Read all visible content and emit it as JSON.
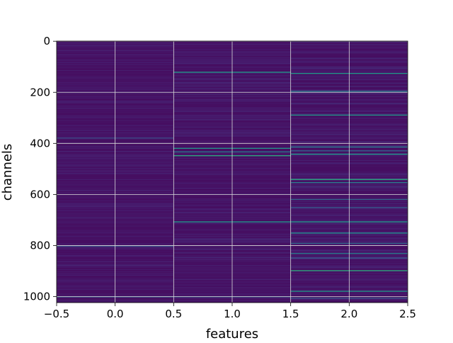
{
  "chart_data": {
    "type": "heatmap",
    "title": "",
    "xlabel": "features",
    "ylabel": "channels",
    "xlim": [
      -0.5,
      2.5
    ],
    "ylim": [
      1023.5,
      -0.5
    ],
    "x_ticks": [
      -0.5,
      0.0,
      0.5,
      1.0,
      1.5,
      2.0,
      2.5
    ],
    "x_tick_labels": [
      "−0.5",
      "0.0",
      "0.5",
      "1.0",
      "1.5",
      "2.0",
      "2.5"
    ],
    "y_ticks": [
      0,
      200,
      400,
      600,
      800,
      1000
    ],
    "y_tick_labels": [
      "0",
      "200",
      "400",
      "600",
      "800",
      "1000"
    ],
    "grid": true,
    "colormap": "viridis",
    "rows": 1024,
    "columns": [
      0,
      1,
      2
    ],
    "background_level": 0.05,
    "highlights": [
      {
        "column": 0,
        "channel": 378,
        "level": 0.3
      },
      {
        "column": 0,
        "channel": 802,
        "level": 0.3
      },
      {
        "column": 0,
        "channel": 1000,
        "level": 0.35
      },
      {
        "column": 1,
        "channel": 120,
        "level": 0.55
      },
      {
        "column": 1,
        "channel": 418,
        "level": 0.55
      },
      {
        "column": 1,
        "channel": 432,
        "level": 0.45
      },
      {
        "column": 1,
        "channel": 447,
        "level": 0.65
      },
      {
        "column": 1,
        "channel": 706,
        "level": 0.55
      },
      {
        "column": 1,
        "channel": 1000,
        "level": 0.35
      },
      {
        "column": 2,
        "channel": 125,
        "level": 0.55
      },
      {
        "column": 2,
        "channel": 195,
        "level": 0.45
      },
      {
        "column": 2,
        "channel": 288,
        "level": 0.55
      },
      {
        "column": 2,
        "channel": 413,
        "level": 0.45
      },
      {
        "column": 2,
        "channel": 428,
        "level": 0.4
      },
      {
        "column": 2,
        "channel": 441,
        "level": 0.55
      },
      {
        "column": 2,
        "channel": 540,
        "level": 0.65
      },
      {
        "column": 2,
        "channel": 552,
        "level": 0.45
      },
      {
        "column": 2,
        "channel": 618,
        "level": 0.4
      },
      {
        "column": 2,
        "channel": 650,
        "level": 0.35
      },
      {
        "column": 2,
        "channel": 706,
        "level": 0.55
      },
      {
        "column": 2,
        "channel": 750,
        "level": 0.5
      },
      {
        "column": 2,
        "channel": 790,
        "level": 0.4
      },
      {
        "column": 2,
        "channel": 830,
        "level": 0.45
      },
      {
        "column": 2,
        "channel": 848,
        "level": 0.35
      },
      {
        "column": 2,
        "channel": 897,
        "level": 0.65
      },
      {
        "column": 2,
        "channel": 978,
        "level": 0.55
      },
      {
        "column": 2,
        "channel": 1005,
        "level": 0.35
      }
    ]
  }
}
